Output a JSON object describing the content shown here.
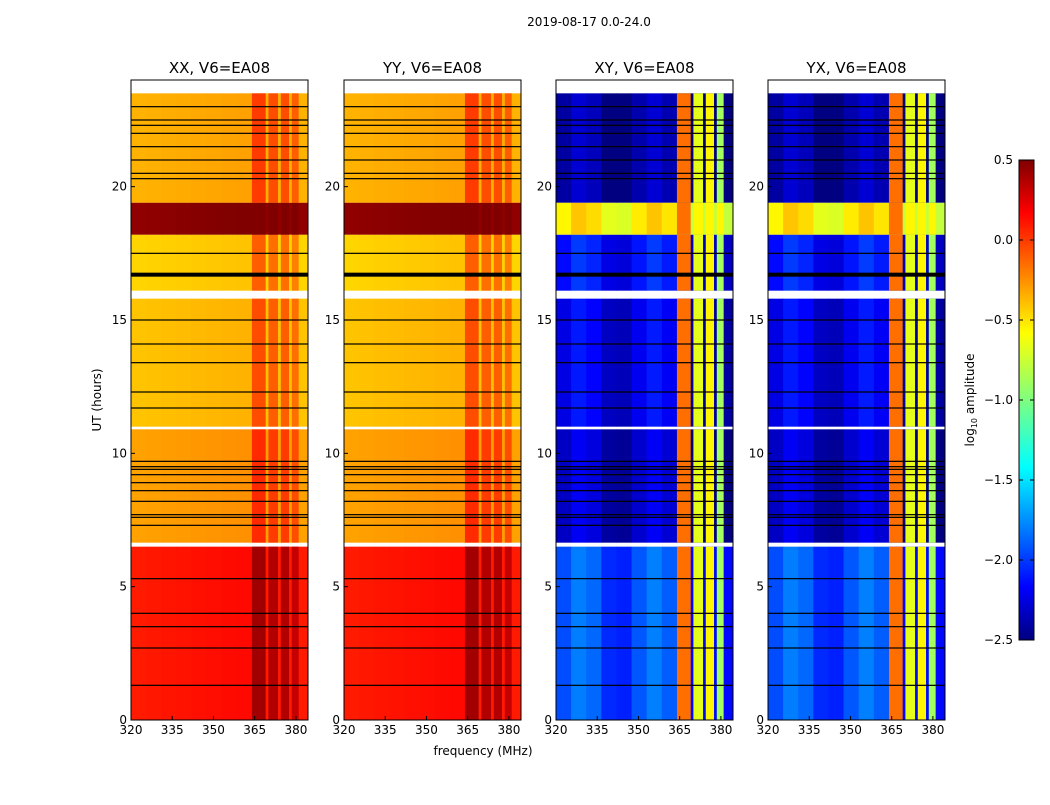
{
  "chart_data": {
    "type": "heatmap",
    "suptitle": "2019-08-17 0.0-24.0",
    "xlabel": "frequency (MHz)",
    "ylabel": "UT (hours)",
    "xlim": [
      320,
      384.4
    ],
    "ylim": [
      0,
      24
    ],
    "xticks": [
      "320",
      "335",
      "350",
      "365",
      "380"
    ],
    "yticks": [
      "0",
      "5",
      "10",
      "15",
      "20"
    ],
    "panels": [
      {
        "title": "XX, V6=EA08",
        "kind": "parallel"
      },
      {
        "title": "YY, V6=EA08",
        "kind": "parallel"
      },
      {
        "title": "XY, V6=EA08",
        "kind": "cross"
      },
      {
        "title": "YX, V6=EA08",
        "kind": "cross"
      }
    ],
    "time_blocks_note": "[t_start, t_end, parallel log10 amp, cross log10 amp]",
    "time_blocks": [
      [
        0.0,
        6.5,
        0.05,
        -1.9
      ],
      [
        6.65,
        10.9,
        -0.35,
        -2.3
      ],
      [
        11.0,
        15.8,
        -0.45,
        -2.2
      ],
      [
        16.1,
        18.2,
        -0.5,
        -2.1
      ],
      [
        18.2,
        19.4,
        0.45,
        -0.6
      ],
      [
        19.4,
        23.5,
        -0.4,
        -2.4
      ]
    ],
    "rfi_columns_note": "[f_start, f_end, parallel boost, cross log10 amp]",
    "rfi_columns": [
      [
        364,
        369,
        0.35,
        -0.2
      ],
      [
        370,
        373.5,
        0.3,
        -0.7
      ],
      [
        374.5,
        377.5,
        0.3,
        -0.6
      ],
      [
        378.5,
        381,
        0.25,
        -0.9
      ]
    ],
    "flagged_times": [
      1.3,
      2.7,
      3.5,
      4.0,
      5.3,
      7.3,
      7.6,
      7.7,
      8.2,
      8.6,
      8.9,
      9.2,
      9.4,
      9.5,
      9.7,
      11.7,
      12.3,
      13.4,
      14.1,
      15.0,
      16.7,
      17.5,
      20.3,
      20.5,
      21.0,
      21.5,
      22.0,
      22.3,
      22.5,
      23.0
    ],
    "colorbar": {
      "label": "log10 amplitude",
      "label_base": "log",
      "label_sub": "10",
      "label_rest": " amplitude",
      "range": [
        -2.5,
        0.5
      ],
      "ticks": [
        "-2.5",
        "-2.0",
        "-1.5",
        "-1.0",
        "-0.5",
        "0.0",
        "0.5"
      ]
    }
  }
}
